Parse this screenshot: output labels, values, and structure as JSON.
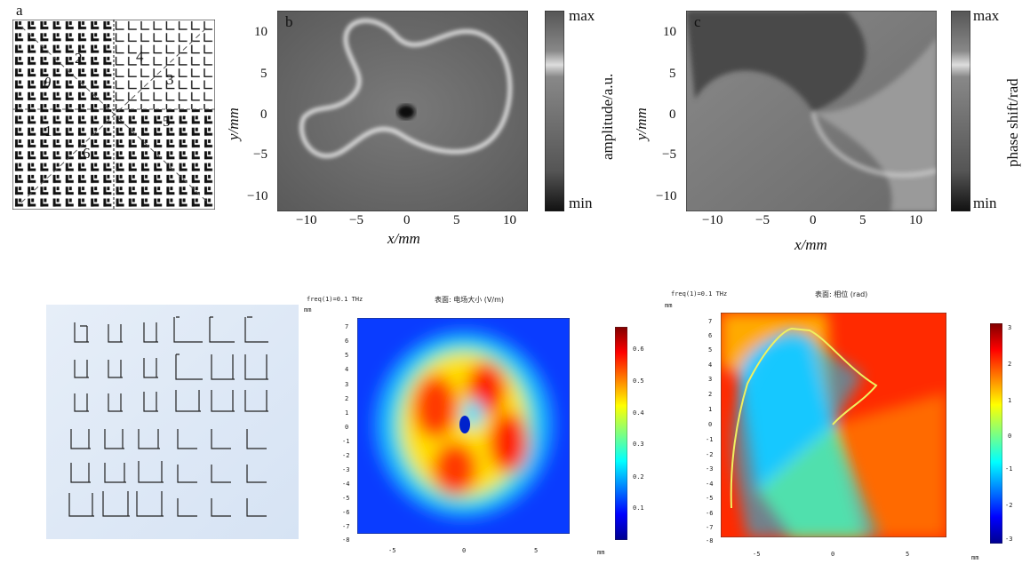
{
  "panel_a": {
    "letter": "a",
    "labels": [
      "θ",
      "1",
      "2",
      "3",
      "4",
      "5",
      "6"
    ]
  },
  "panel_b": {
    "letter": "b",
    "colorbar_max": "max",
    "colorbar_min": "min",
    "colorbar_label": "amplitude/a.u.",
    "xlabel": "x/mm",
    "ylabel": "y/mm",
    "xticks": [
      "−10",
      "−5",
      "0",
      "5",
      "10"
    ],
    "yticks": [
      "10",
      "5",
      "0",
      "−5",
      "−10"
    ]
  },
  "panel_c": {
    "letter": "c",
    "colorbar_max": "max",
    "colorbar_min": "min",
    "colorbar_label": "phase shift/rad",
    "xlabel": "x/mm",
    "ylabel": "y/mm",
    "xticks": [
      "−10",
      "−5",
      "0",
      "5",
      "10"
    ],
    "yticks": [
      "10",
      "5",
      "0",
      "−5",
      "−10"
    ]
  },
  "sim_e": {
    "header_left": "freq(1)=0.1 THz",
    "header_title": "表面: 电场大小 (V/m)",
    "unit": "mm",
    "xticks": [
      "-5",
      "0",
      "5"
    ],
    "yticks": [
      "7",
      "6",
      "5",
      "4",
      "3",
      "2",
      "1",
      "0",
      "-1",
      "-2",
      "-3",
      "-4",
      "-5",
      "-6",
      "-7",
      "-8"
    ],
    "cbar_ticks": [
      "0.6",
      "0.5",
      "0.4",
      "0.3",
      "0.2",
      "0.1"
    ]
  },
  "sim_f": {
    "header_left": "freq(1)=0.1 THz",
    "header_title": "表面: 相位 (rad)",
    "unit": "mm",
    "xticks": [
      "-5",
      "0",
      "5"
    ],
    "yticks": [
      "7",
      "6",
      "5",
      "4",
      "3",
      "2",
      "1",
      "0",
      "-1",
      "-2",
      "-3",
      "-4",
      "-5",
      "-6",
      "-7",
      "-8"
    ],
    "cbar_ticks": [
      "3",
      "2",
      "1",
      "0",
      "-1",
      "-2",
      "-3"
    ]
  },
  "colors": {
    "jet_top": "#800000",
    "jet_mid": "#7fff7f",
    "jet_bottom": "#00008f",
    "panel_bg": "#dfe9f5"
  }
}
